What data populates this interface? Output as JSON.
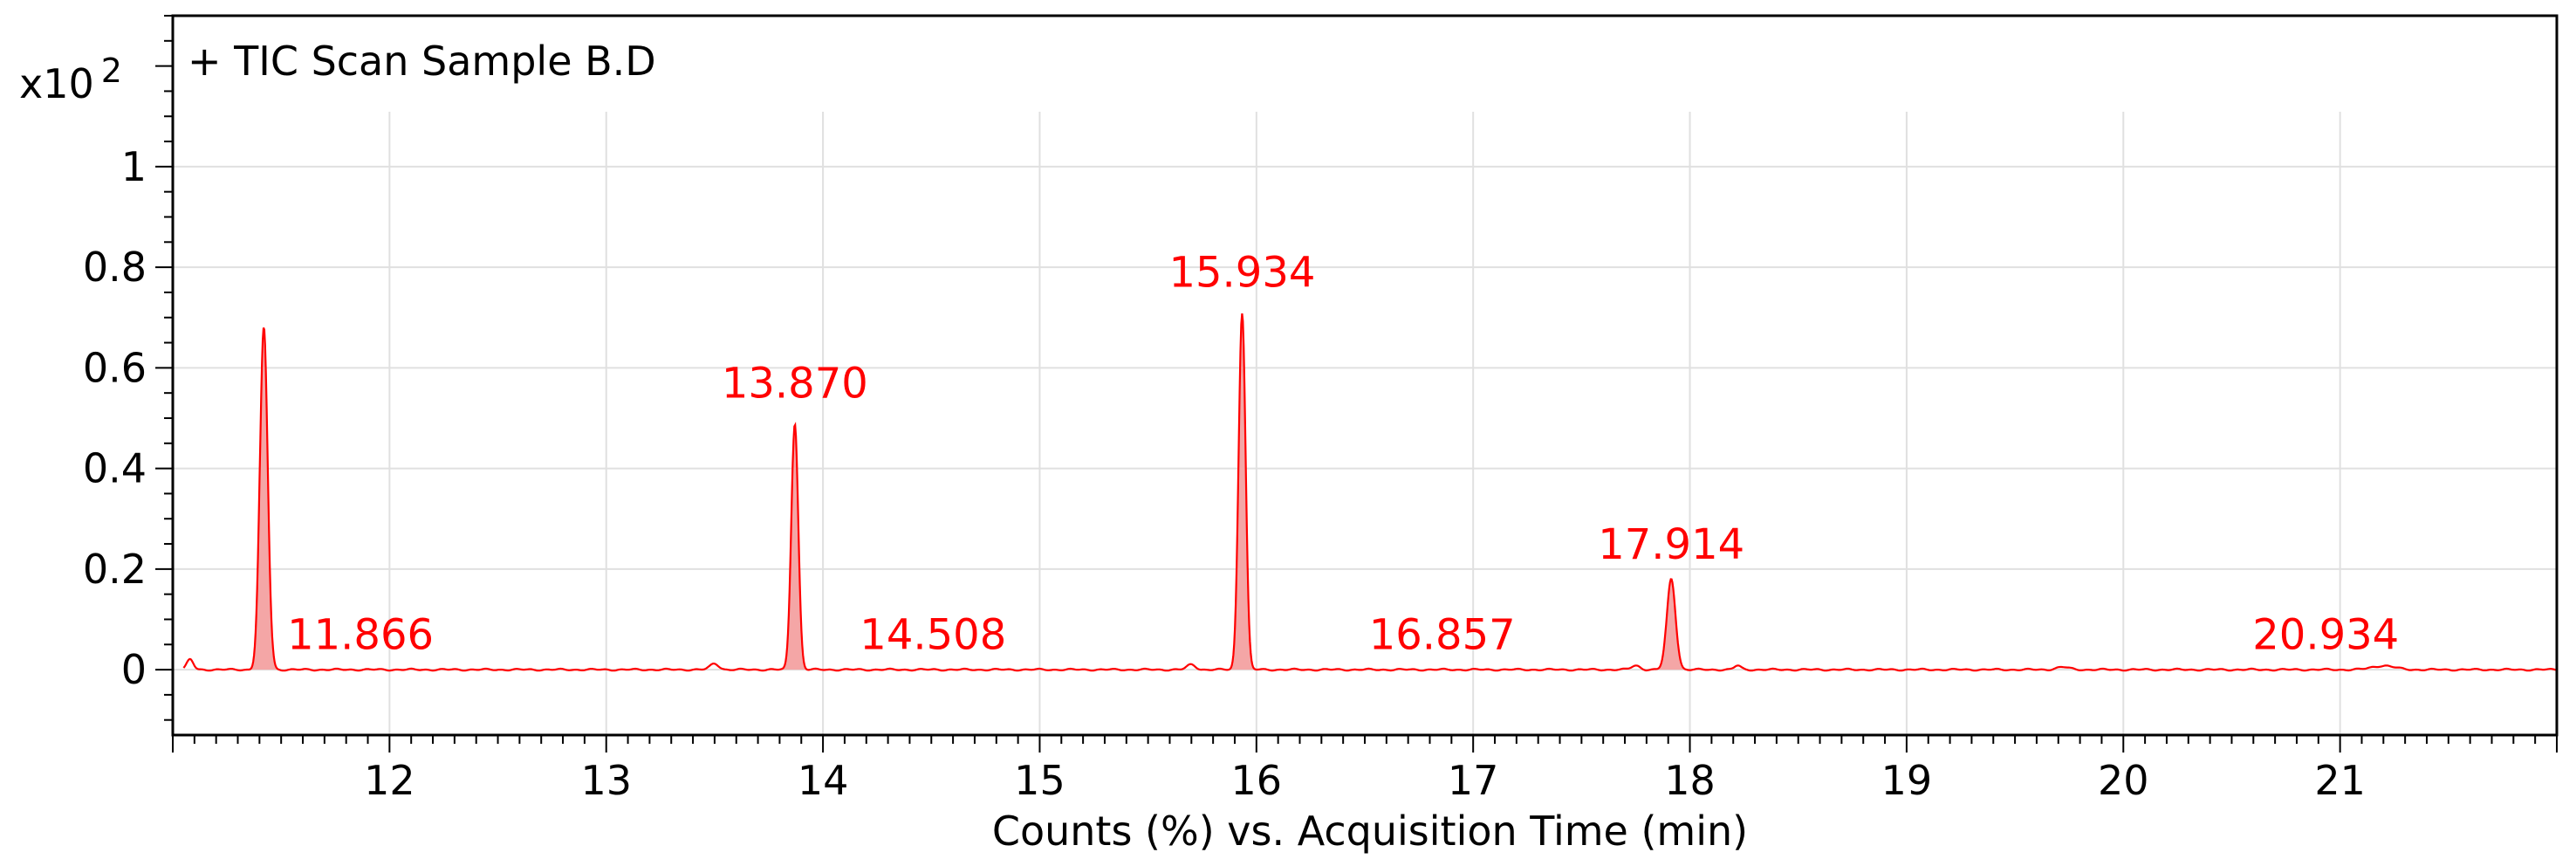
{
  "chart_data": {
    "type": "line",
    "title": "+ TIC Scan Sample B.D",
    "xlabel": "Counts (%) vs. Acquisition Time (min)",
    "ylabel": "",
    "y_multiplier_label": "x10",
    "y_multiplier_exponent": "2",
    "xlim": [
      11.0,
      22.0
    ],
    "ylim": [
      -0.13,
      1.3
    ],
    "x_ticks": [
      12,
      13,
      14,
      15,
      16,
      17,
      18,
      19,
      20,
      21
    ],
    "y_ticks": [
      0,
      0.2,
      0.4,
      0.6,
      0.8,
      1
    ],
    "y_tick_labels": [
      "0",
      "0.2",
      "0.4",
      "0.6",
      "0.8",
      "1"
    ],
    "grid": true,
    "line_color": "#ff0000",
    "fill_color": "#f4a6a6",
    "peaks": [
      {
        "rt": 11.42,
        "height": 0.68,
        "width": 0.018
      },
      {
        "rt": 13.87,
        "height": 0.49,
        "width": 0.016
      },
      {
        "rt": 15.934,
        "height": 0.71,
        "width": 0.016
      },
      {
        "rt": 17.914,
        "height": 0.18,
        "width": 0.02
      },
      {
        "rt": 11.08,
        "height": 0.02,
        "width": 0.015
      },
      {
        "rt": 13.5,
        "height": 0.012,
        "width": 0.02
      },
      {
        "rt": 15.7,
        "height": 0.01,
        "width": 0.02
      },
      {
        "rt": 17.75,
        "height": 0.008,
        "width": 0.02
      },
      {
        "rt": 18.22,
        "height": 0.008,
        "width": 0.015
      },
      {
        "rt": 19.72,
        "height": 0.005,
        "width": 0.03
      },
      {
        "rt": 21.2,
        "height": 0.008,
        "width": 0.05
      }
    ],
    "annotations": [
      {
        "text": "11.866",
        "x": 11.866,
        "y": 0.02
      },
      {
        "text": "13.870",
        "x": 13.87,
        "y": 0.52
      },
      {
        "text": "14.508",
        "x": 14.508,
        "y": 0.02
      },
      {
        "text": "15.934",
        "x": 15.934,
        "y": 0.74
      },
      {
        "text": "16.857",
        "x": 16.857,
        "y": 0.02
      },
      {
        "text": "17.914",
        "x": 17.914,
        "y": 0.2
      },
      {
        "text": "20.934",
        "x": 20.934,
        "y": 0.02
      }
    ]
  }
}
